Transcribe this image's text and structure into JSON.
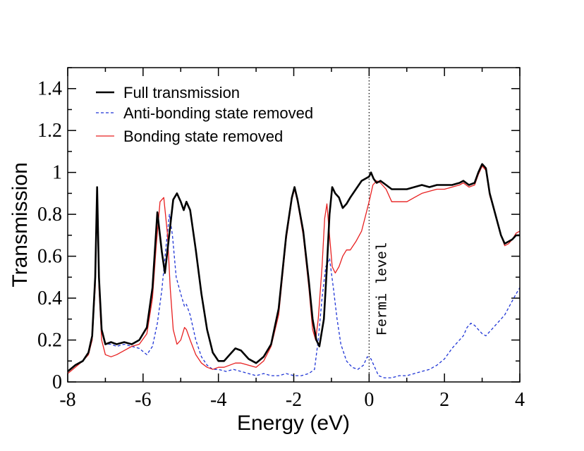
{
  "chart_data": {
    "type": "line",
    "title": "",
    "xlabel": "Energy (eV)",
    "ylabel": "Transmission",
    "xlim": [
      -8,
      4
    ],
    "ylim": [
      0,
      1.5
    ],
    "xticks": [
      -8,
      -6,
      -4,
      -2,
      0,
      2,
      4
    ],
    "xtick_labels": [
      "-8",
      "-6",
      "-4",
      "-2",
      "0",
      "2",
      "4"
    ],
    "yticks": [
      0,
      0.2,
      0.4,
      0.6,
      0.8,
      1.0,
      1.2,
      1.4
    ],
    "ytick_labels": [
      "0",
      "0.2",
      "0.4",
      "0.6",
      "0.8",
      "1",
      "1.2",
      "1.4"
    ],
    "legend_position": "top-left",
    "annotation": {
      "text": "Fermi level",
      "x": 0
    },
    "series": [
      {
        "name": "Full transmission",
        "color": "#000000",
        "style": "solid",
        "points": [
          [
            -8,
            0.05
          ],
          [
            -7.8,
            0.08
          ],
          [
            -7.6,
            0.1
          ],
          [
            -7.45,
            0.14
          ],
          [
            -7.35,
            0.22
          ],
          [
            -7.27,
            0.5
          ],
          [
            -7.22,
            0.93
          ],
          [
            -7.17,
            0.5
          ],
          [
            -7.1,
            0.25
          ],
          [
            -7.0,
            0.18
          ],
          [
            -6.85,
            0.19
          ],
          [
            -6.7,
            0.18
          ],
          [
            -6.5,
            0.19
          ],
          [
            -6.3,
            0.18
          ],
          [
            -6.1,
            0.2
          ],
          [
            -5.9,
            0.26
          ],
          [
            -5.75,
            0.45
          ],
          [
            -5.62,
            0.81
          ],
          [
            -5.5,
            0.62
          ],
          [
            -5.42,
            0.52
          ],
          [
            -5.32,
            0.68
          ],
          [
            -5.2,
            0.87
          ],
          [
            -5.1,
            0.9
          ],
          [
            -5.0,
            0.86
          ],
          [
            -4.92,
            0.82
          ],
          [
            -4.85,
            0.86
          ],
          [
            -4.75,
            0.82
          ],
          [
            -4.6,
            0.63
          ],
          [
            -4.45,
            0.42
          ],
          [
            -4.3,
            0.25
          ],
          [
            -4.15,
            0.14
          ],
          [
            -4.0,
            0.1
          ],
          [
            -3.85,
            0.1
          ],
          [
            -3.7,
            0.13
          ],
          [
            -3.55,
            0.16
          ],
          [
            -3.4,
            0.15
          ],
          [
            -3.2,
            0.11
          ],
          [
            -3.0,
            0.09
          ],
          [
            -2.8,
            0.12
          ],
          [
            -2.6,
            0.18
          ],
          [
            -2.4,
            0.35
          ],
          [
            -2.2,
            0.7
          ],
          [
            -2.05,
            0.88
          ],
          [
            -1.98,
            0.93
          ],
          [
            -1.9,
            0.87
          ],
          [
            -1.75,
            0.72
          ],
          [
            -1.6,
            0.48
          ],
          [
            -1.5,
            0.3
          ],
          [
            -1.4,
            0.2
          ],
          [
            -1.32,
            0.17
          ],
          [
            -1.2,
            0.3
          ],
          [
            -1.12,
            0.55
          ],
          [
            -1.05,
            0.8
          ],
          [
            -0.98,
            0.93
          ],
          [
            -0.9,
            0.9
          ],
          [
            -0.8,
            0.88
          ],
          [
            -0.7,
            0.83
          ],
          [
            -0.6,
            0.85
          ],
          [
            -0.5,
            0.88
          ],
          [
            -0.35,
            0.92
          ],
          [
            -0.2,
            0.96
          ],
          [
            -0.1,
            0.97
          ],
          [
            0.0,
            0.98
          ],
          [
            0.05,
            1.0
          ],
          [
            0.12,
            0.97
          ],
          [
            0.2,
            0.95
          ],
          [
            0.3,
            0.96
          ],
          [
            0.45,
            0.94
          ],
          [
            0.6,
            0.92
          ],
          [
            0.8,
            0.92
          ],
          [
            1.0,
            0.92
          ],
          [
            1.2,
            0.93
          ],
          [
            1.4,
            0.94
          ],
          [
            1.6,
            0.93
          ],
          [
            1.8,
            0.94
          ],
          [
            2.0,
            0.94
          ],
          [
            2.2,
            0.94
          ],
          [
            2.4,
            0.95
          ],
          [
            2.5,
            0.96
          ],
          [
            2.65,
            0.94
          ],
          [
            2.8,
            0.95
          ],
          [
            2.9,
            1.0
          ],
          [
            3.0,
            1.04
          ],
          [
            3.1,
            1.02
          ],
          [
            3.2,
            0.9
          ],
          [
            3.35,
            0.8
          ],
          [
            3.5,
            0.7
          ],
          [
            3.6,
            0.66
          ],
          [
            3.7,
            0.67
          ],
          [
            3.8,
            0.68
          ],
          [
            3.9,
            0.7
          ],
          [
            4.0,
            0.7
          ]
        ]
      },
      {
        "name": "Anti-bonding state removed",
        "color": "#1f35d6",
        "style": "dashed",
        "points": [
          [
            -8,
            0.05
          ],
          [
            -7.8,
            0.08
          ],
          [
            -7.6,
            0.1
          ],
          [
            -7.45,
            0.14
          ],
          [
            -7.35,
            0.22
          ],
          [
            -7.27,
            0.5
          ],
          [
            -7.22,
            0.93
          ],
          [
            -7.17,
            0.5
          ],
          [
            -7.1,
            0.25
          ],
          [
            -7.0,
            0.18
          ],
          [
            -6.85,
            0.18
          ],
          [
            -6.7,
            0.17
          ],
          [
            -6.5,
            0.18
          ],
          [
            -6.3,
            0.17
          ],
          [
            -6.1,
            0.16
          ],
          [
            -5.9,
            0.13
          ],
          [
            -5.75,
            0.17
          ],
          [
            -5.62,
            0.28
          ],
          [
            -5.5,
            0.44
          ],
          [
            -5.4,
            0.63
          ],
          [
            -5.3,
            0.8
          ],
          [
            -5.22,
            0.7
          ],
          [
            -5.12,
            0.5
          ],
          [
            -5.0,
            0.42
          ],
          [
            -4.9,
            0.36
          ],
          [
            -4.85,
            0.37
          ],
          [
            -4.75,
            0.32
          ],
          [
            -4.6,
            0.2
          ],
          [
            -4.45,
            0.12
          ],
          [
            -4.3,
            0.08
          ],
          [
            -4.15,
            0.06
          ],
          [
            -4.0,
            0.06
          ],
          [
            -3.8,
            0.05
          ],
          [
            -3.6,
            0.06
          ],
          [
            -3.4,
            0.05
          ],
          [
            -3.2,
            0.04
          ],
          [
            -3.0,
            0.03
          ],
          [
            -2.8,
            0.04
          ],
          [
            -2.6,
            0.03
          ],
          [
            -2.4,
            0.03
          ],
          [
            -2.2,
            0.04
          ],
          [
            -2.0,
            0.03
          ],
          [
            -1.8,
            0.03
          ],
          [
            -1.6,
            0.04
          ],
          [
            -1.45,
            0.06
          ],
          [
            -1.35,
            0.2
          ],
          [
            -1.25,
            0.4
          ],
          [
            -1.15,
            0.55
          ],
          [
            -1.05,
            0.59
          ],
          [
            -0.95,
            0.45
          ],
          [
            -0.85,
            0.3
          ],
          [
            -0.75,
            0.18
          ],
          [
            -0.6,
            0.1
          ],
          [
            -0.45,
            0.07
          ],
          [
            -0.3,
            0.06
          ],
          [
            -0.15,
            0.08
          ],
          [
            -0.05,
            0.12
          ],
          [
            0.05,
            0.11
          ],
          [
            0.15,
            0.07
          ],
          [
            0.25,
            0.03
          ],
          [
            0.4,
            0.02
          ],
          [
            0.6,
            0.02
          ],
          [
            0.8,
            0.03
          ],
          [
            1.0,
            0.03
          ],
          [
            1.2,
            0.04
          ],
          [
            1.4,
            0.05
          ],
          [
            1.6,
            0.06
          ],
          [
            1.8,
            0.08
          ],
          [
            2.0,
            0.11
          ],
          [
            2.2,
            0.16
          ],
          [
            2.4,
            0.2
          ],
          [
            2.5,
            0.22
          ],
          [
            2.6,
            0.26
          ],
          [
            2.7,
            0.28
          ],
          [
            2.8,
            0.27
          ],
          [
            2.9,
            0.25
          ],
          [
            3.0,
            0.23
          ],
          [
            3.1,
            0.22
          ],
          [
            3.2,
            0.24
          ],
          [
            3.4,
            0.28
          ],
          [
            3.6,
            0.32
          ],
          [
            3.75,
            0.37
          ],
          [
            3.9,
            0.42
          ],
          [
            4.0,
            0.45
          ]
        ]
      },
      {
        "name": "Bonding state removed",
        "color": "#e82020",
        "style": "solid",
        "points": [
          [
            -8,
            0.04
          ],
          [
            -7.8,
            0.07
          ],
          [
            -7.6,
            0.1
          ],
          [
            -7.45,
            0.13
          ],
          [
            -7.35,
            0.2
          ],
          [
            -7.27,
            0.45
          ],
          [
            -7.22,
            0.9
          ],
          [
            -7.17,
            0.45
          ],
          [
            -7.1,
            0.2
          ],
          [
            -7.0,
            0.13
          ],
          [
            -6.85,
            0.12
          ],
          [
            -6.7,
            0.13
          ],
          [
            -6.5,
            0.15
          ],
          [
            -6.3,
            0.17
          ],
          [
            -6.1,
            0.18
          ],
          [
            -5.9,
            0.23
          ],
          [
            -5.75,
            0.4
          ],
          [
            -5.65,
            0.65
          ],
          [
            -5.55,
            0.86
          ],
          [
            -5.45,
            0.88
          ],
          [
            -5.35,
            0.7
          ],
          [
            -5.28,
            0.45
          ],
          [
            -5.2,
            0.25
          ],
          [
            -5.1,
            0.18
          ],
          [
            -5.0,
            0.2
          ],
          [
            -4.9,
            0.26
          ],
          [
            -4.85,
            0.25
          ],
          [
            -4.75,
            0.2
          ],
          [
            -4.6,
            0.13
          ],
          [
            -4.45,
            0.09
          ],
          [
            -4.3,
            0.07
          ],
          [
            -4.15,
            0.06
          ],
          [
            -4.0,
            0.07
          ],
          [
            -3.85,
            0.07
          ],
          [
            -3.7,
            0.08
          ],
          [
            -3.55,
            0.09
          ],
          [
            -3.4,
            0.09
          ],
          [
            -3.2,
            0.08
          ],
          [
            -3.0,
            0.07
          ],
          [
            -2.8,
            0.1
          ],
          [
            -2.6,
            0.17
          ],
          [
            -2.4,
            0.32
          ],
          [
            -2.2,
            0.68
          ],
          [
            -2.05,
            0.87
          ],
          [
            -1.98,
            0.92
          ],
          [
            -1.9,
            0.86
          ],
          [
            -1.75,
            0.7
          ],
          [
            -1.6,
            0.45
          ],
          [
            -1.5,
            0.25
          ],
          [
            -1.42,
            0.2
          ],
          [
            -1.35,
            0.3
          ],
          [
            -1.25,
            0.55
          ],
          [
            -1.18,
            0.78
          ],
          [
            -1.12,
            0.85
          ],
          [
            -1.05,
            0.7
          ],
          [
            -0.98,
            0.55
          ],
          [
            -0.9,
            0.52
          ],
          [
            -0.8,
            0.55
          ],
          [
            -0.7,
            0.6
          ],
          [
            -0.6,
            0.63
          ],
          [
            -0.5,
            0.63
          ],
          [
            -0.35,
            0.67
          ],
          [
            -0.2,
            0.72
          ],
          [
            -0.1,
            0.79
          ],
          [
            0.0,
            0.86
          ],
          [
            0.1,
            0.94
          ],
          [
            0.2,
            0.96
          ],
          [
            0.3,
            0.95
          ],
          [
            0.45,
            0.92
          ],
          [
            0.6,
            0.86
          ],
          [
            0.8,
            0.86
          ],
          [
            1.0,
            0.86
          ],
          [
            1.2,
            0.88
          ],
          [
            1.4,
            0.9
          ],
          [
            1.6,
            0.91
          ],
          [
            1.8,
            0.92
          ],
          [
            2.0,
            0.92
          ],
          [
            2.2,
            0.93
          ],
          [
            2.4,
            0.94
          ],
          [
            2.5,
            0.95
          ],
          [
            2.65,
            0.93
          ],
          [
            2.8,
            0.94
          ],
          [
            2.9,
            0.99
          ],
          [
            3.0,
            1.03
          ],
          [
            3.1,
            1.01
          ],
          [
            3.2,
            0.89
          ],
          [
            3.35,
            0.8
          ],
          [
            3.5,
            0.7
          ],
          [
            3.6,
            0.65
          ],
          [
            3.7,
            0.66
          ],
          [
            3.8,
            0.68
          ],
          [
            3.9,
            0.71
          ],
          [
            4.0,
            0.72
          ]
        ]
      }
    ]
  }
}
